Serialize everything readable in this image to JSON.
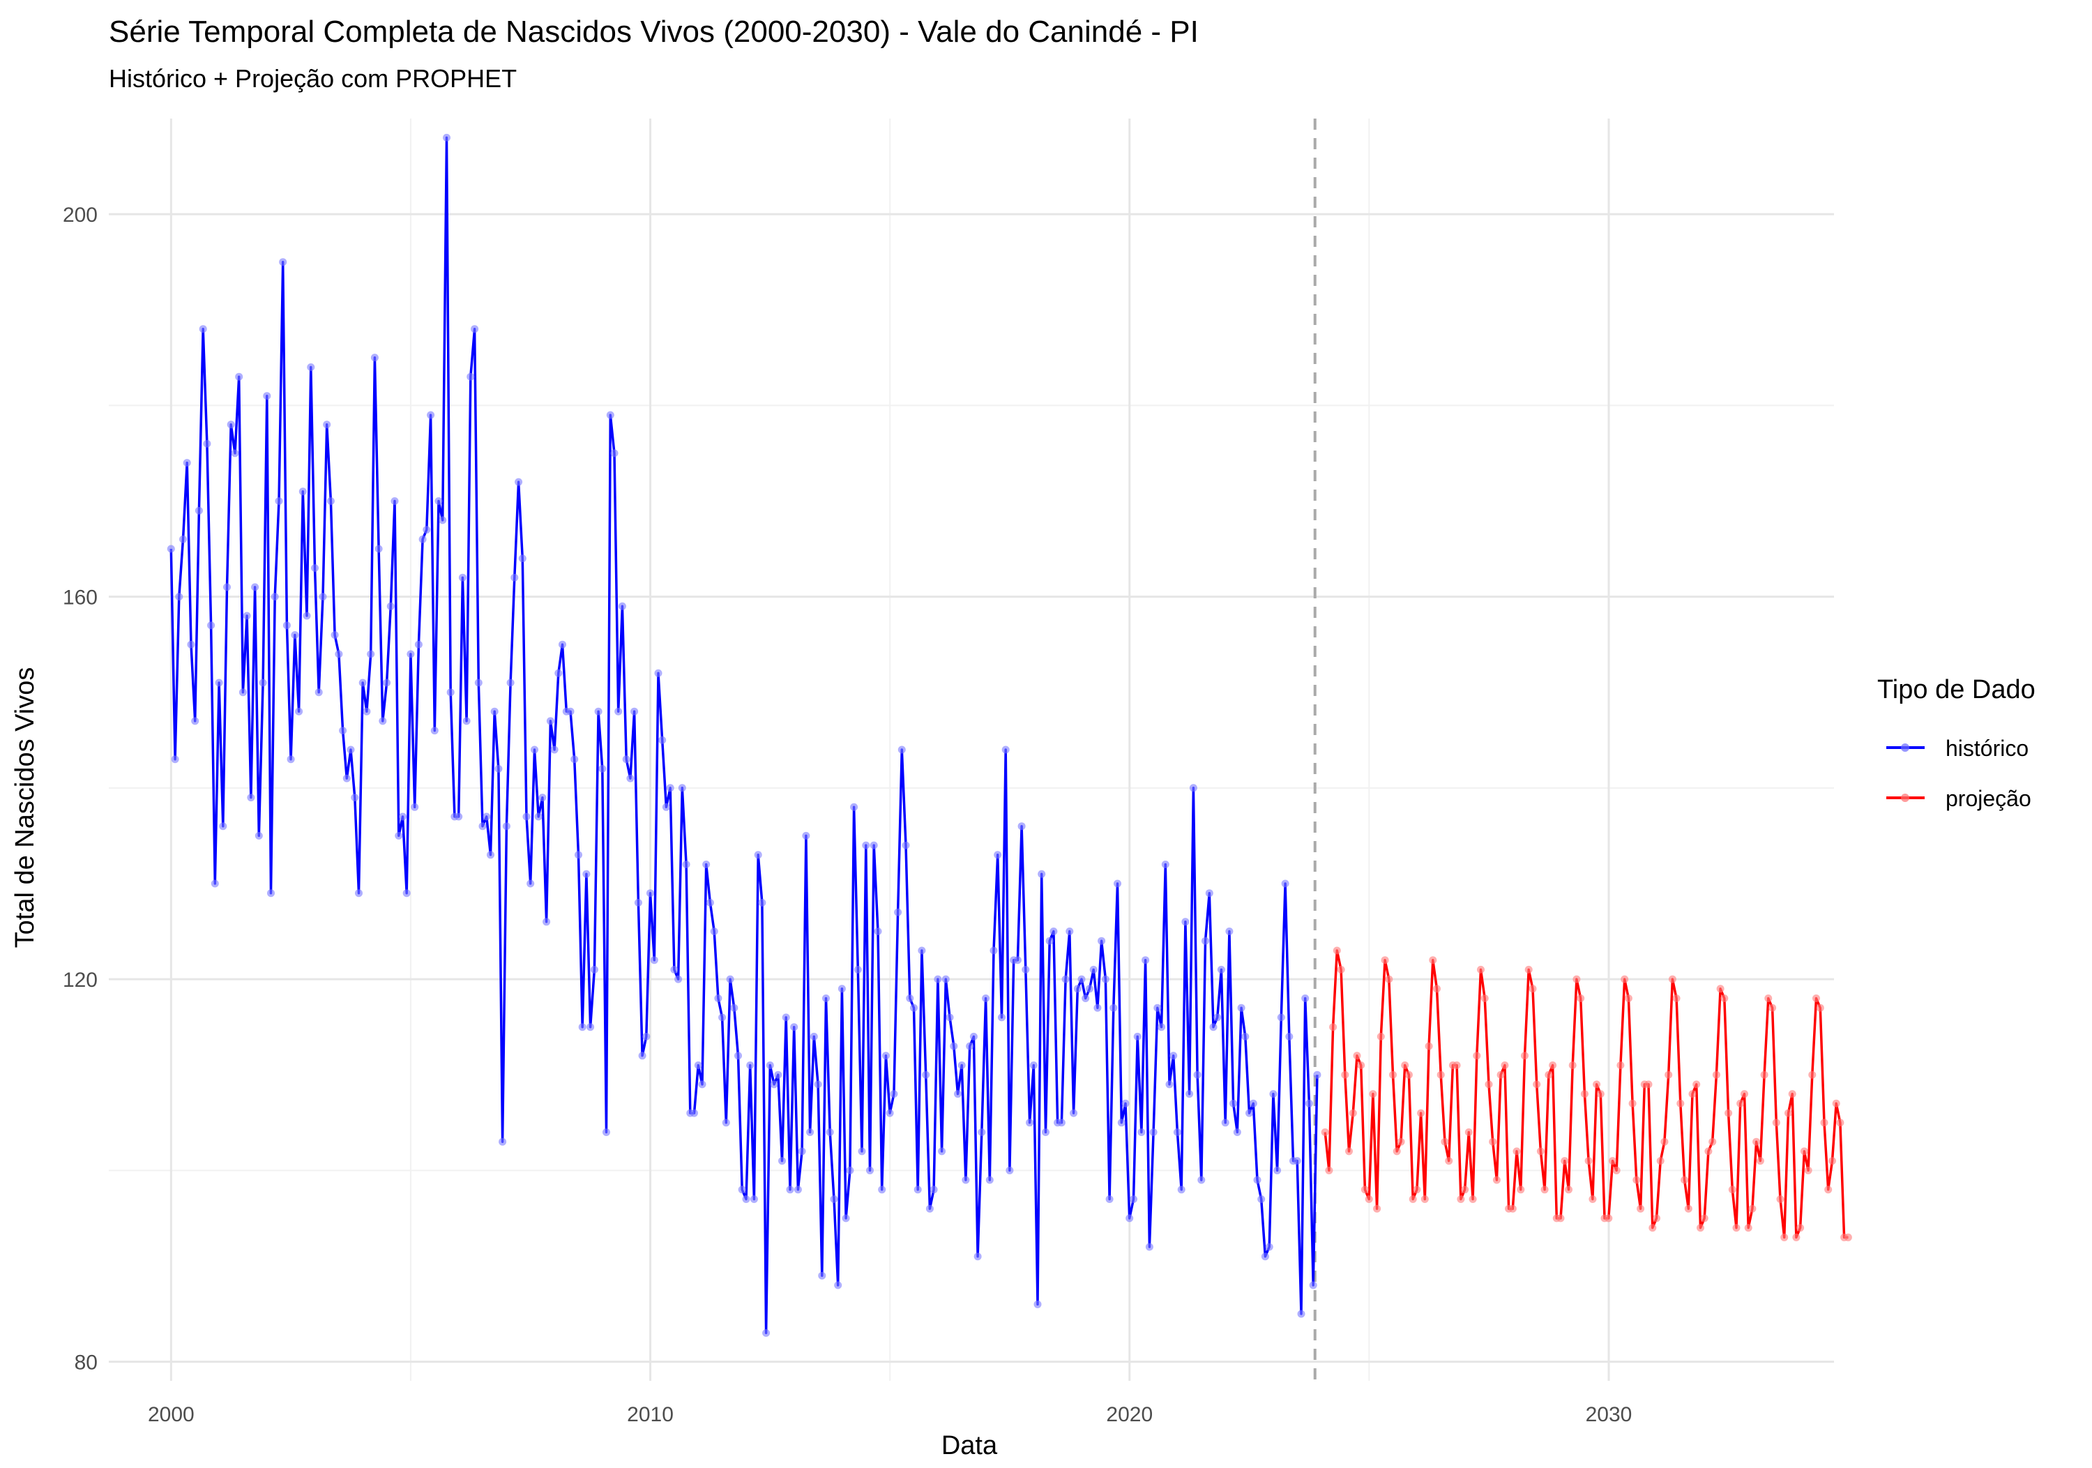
{
  "chart_data": {
    "type": "line",
    "title": "Série Temporal Completa de Nascidos Vivos (2000-2030) -  Vale do Canindé - PI",
    "subtitle": "Histórico + Projeção com PROPHET",
    "xlabel": "Data",
    "ylabel": "Total de Nascidos Vivos",
    "xlim": [
      1998.7,
      2034.7
    ],
    "ylim": [
      78,
      210
    ],
    "x_ticks": [
      2000,
      2010,
      2020,
      2030
    ],
    "y_ticks": [
      80,
      120,
      160,
      200
    ],
    "x_minor_ticks": [
      2005,
      2015,
      2025
    ],
    "y_minor_ticks": [
      100,
      140,
      180
    ],
    "grid": true,
    "vline": {
      "x": 2023.87,
      "style": "dashed",
      "color": "#aaaaaa"
    },
    "legend": {
      "title": "Tipo de Dado",
      "placement": "right",
      "entries": [
        {
          "label": "histórico",
          "color": "#0000ff"
        },
        {
          "label": "projeção",
          "color": "#ff0000"
        }
      ]
    },
    "series": [
      {
        "name": "histórico",
        "color": "#0000ff",
        "start": 2000.0,
        "step": 0.08333,
        "values": [
          165,
          143,
          160,
          166,
          174,
          155,
          147,
          169,
          188,
          176,
          157,
          130,
          151,
          136,
          161,
          178,
          175,
          183,
          150,
          158,
          139,
          161,
          135,
          151,
          181,
          129,
          160,
          170,
          195,
          157,
          143,
          156,
          148,
          171,
          158,
          184,
          163,
          150,
          160,
          178,
          170,
          156,
          154,
          146,
          141,
          144,
          139,
          129,
          151,
          148,
          154,
          185,
          165,
          147,
          151,
          159,
          170,
          135,
          137,
          129,
          154,
          138,
          155,
          166,
          167,
          179,
          146,
          170,
          168,
          208,
          150,
          137,
          137,
          162,
          147,
          183,
          188,
          151,
          136,
          137,
          133,
          148,
          142,
          103,
          136,
          151,
          162,
          172,
          164,
          137,
          130,
          144,
          137,
          139,
          126,
          147,
          144,
          152,
          155,
          148,
          148,
          143,
          133,
          115,
          131,
          115,
          121,
          148,
          142,
          104,
          179,
          175,
          148,
          159,
          143,
          141,
          148,
          128,
          112,
          114,
          129,
          122,
          152,
          145,
          138,
          140,
          121,
          120,
          140,
          132,
          106,
          106,
          111,
          109,
          132,
          128,
          125,
          118,
          116,
          105,
          120,
          117,
          112,
          98,
          97,
          111,
          97,
          133,
          128,
          83,
          111,
          109,
          110,
          101,
          116,
          98,
          115,
          98,
          102,
          135,
          104,
          114,
          109,
          89,
          118,
          104,
          97,
          88,
          119,
          95,
          100,
          138,
          121,
          102,
          134,
          100,
          134,
          125,
          98,
          112,
          106,
          108,
          127,
          144,
          134,
          118,
          117,
          98,
          123,
          110,
          96,
          98,
          120,
          102,
          120,
          116,
          113,
          108,
          111,
          99,
          113,
          114,
          91,
          104,
          118,
          99,
          123,
          133,
          116,
          144,
          100,
          122,
          122,
          136,
          121,
          105,
          111,
          86,
          131,
          104,
          124,
          125,
          105,
          105,
          120,
          125,
          106,
          119,
          120,
          118,
          119,
          121,
          117,
          124,
          120,
          97,
          117,
          130,
          105,
          107,
          95,
          97,
          114,
          104,
          122,
          92,
          104,
          117,
          115,
          132,
          109,
          112,
          104,
          98,
          126,
          108,
          140,
          110,
          99,
          124,
          129,
          115,
          116,
          121,
          105,
          125,
          107,
          104,
          117,
          114,
          106,
          107,
          99,
          97,
          91,
          92,
          108,
          100,
          116,
          130,
          114,
          101,
          101,
          85,
          118,
          107,
          88,
          110
        ]
      },
      {
        "name": "projeção",
        "color": "#ff0000",
        "start": 2024.08,
        "step": 0.08333,
        "values": [
          104,
          100,
          115,
          123,
          121,
          110,
          102,
          106,
          112,
          111,
          98,
          97,
          108,
          96,
          114,
          122,
          120,
          110,
          102,
          103,
          111,
          110,
          97,
          98,
          106,
          97,
          113,
          122,
          119,
          110,
          103,
          101,
          111,
          111,
          97,
          98,
          104,
          97,
          112,
          121,
          118,
          109,
          103,
          99,
          110,
          111,
          96,
          96,
          102,
          98,
          112,
          121,
          119,
          109,
          102,
          98,
          110,
          111,
          95,
          95,
          101,
          98,
          111,
          120,
          118,
          108,
          101,
          97,
          109,
          108,
          95,
          95,
          101,
          100,
          111,
          120,
          118,
          107,
          99,
          96,
          109,
          109,
          94,
          95,
          101,
          103,
          110,
          120,
          118,
          107,
          99,
          96,
          108,
          109,
          94,
          95,
          102,
          103,
          110,
          119,
          118,
          106,
          98,
          94,
          107,
          108,
          94,
          96,
          103,
          101,
          110,
          118,
          117,
          105,
          97,
          93,
          106,
          108,
          93,
          94,
          102,
          100,
          110,
          118,
          117,
          105,
          98,
          101,
          107,
          105,
          93,
          93
        ]
      }
    ]
  }
}
